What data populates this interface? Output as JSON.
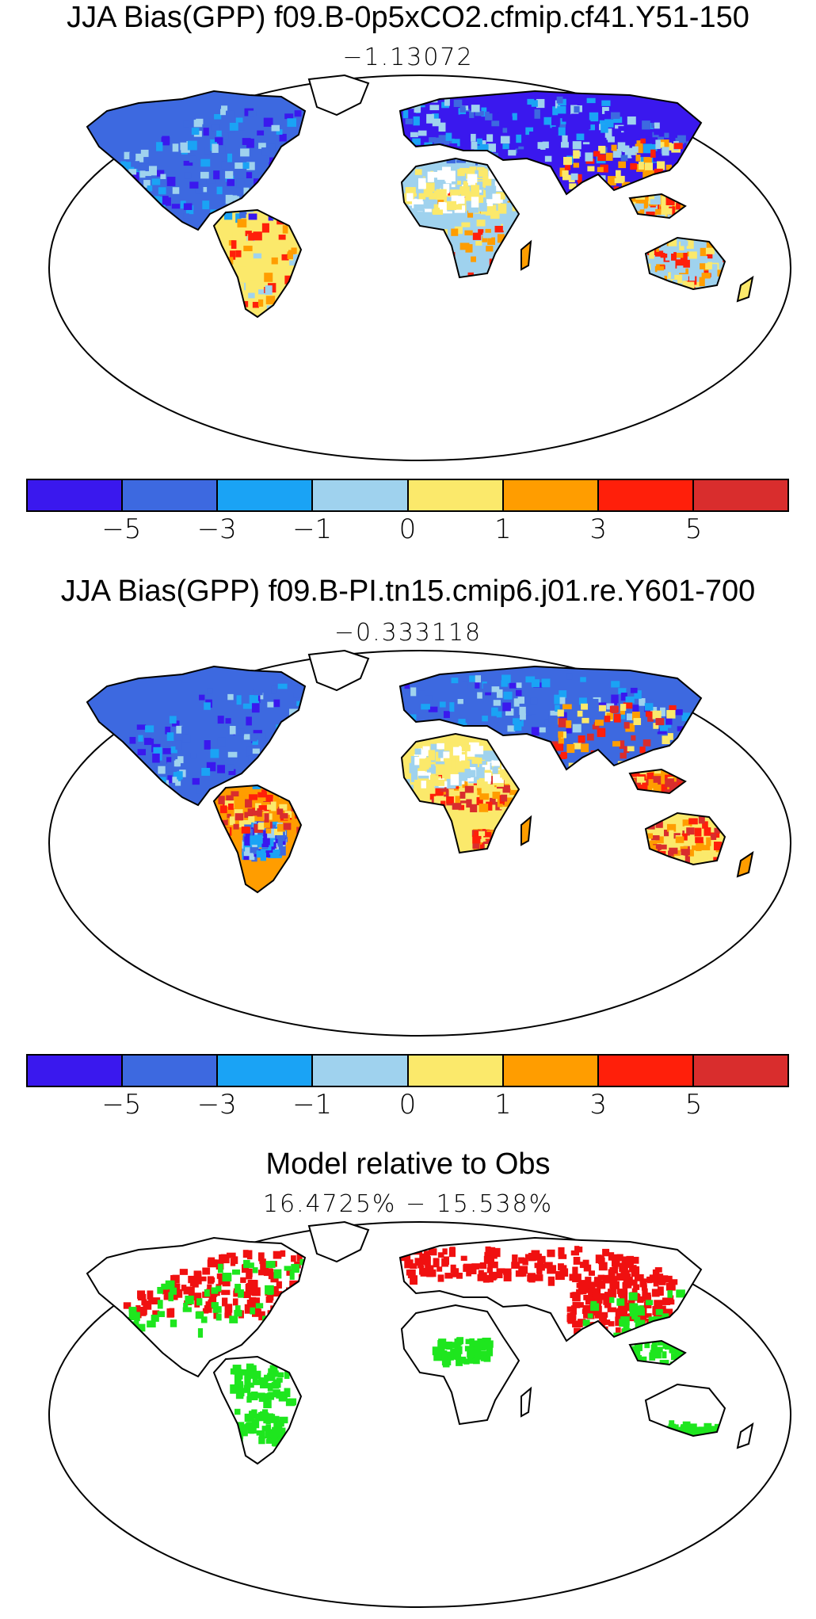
{
  "panels": [
    {
      "title": "JJA Bias(GPP) f09.B-0p5xCO2.cfmip.cf41.Y51-150",
      "mean_label": "−1.13072",
      "theme": "bias1"
    },
    {
      "title": "JJA Bias(GPP) f09.B-PI.tn15.cmip6.j01.re.Y601-700",
      "mean_label": "−0.333118",
      "theme": "bias2"
    },
    {
      "title": "Model relative to Obs",
      "mean_label": "16.4725%  −  15.538%",
      "theme": "relative"
    }
  ],
  "colorbar": {
    "colors": [
      "#3a18ee",
      "#3d69e0",
      "#1aa3f5",
      "#9fd2ee",
      "#fbe96b",
      "#ff9d00",
      "#ff1f0a",
      "#d92d2d"
    ],
    "tick_labels": [
      "−5",
      "−3",
      "−1",
      "0",
      "1",
      "3",
      "5"
    ]
  },
  "relative_colors": {
    "model_better": "#1ee61e",
    "model_worse": "#f01010"
  }
}
